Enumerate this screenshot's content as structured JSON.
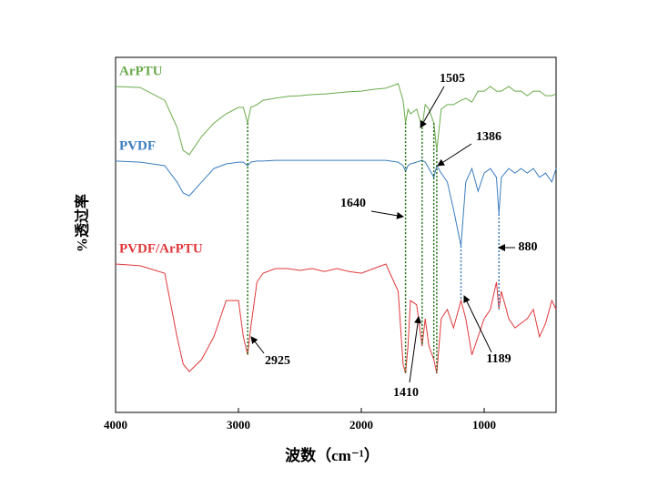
{
  "chart_data": {
    "type": "line",
    "xlabel": "波数（cm⁻¹）",
    "ylabel": "%透过率",
    "xlim": [
      4000,
      415
    ],
    "xticks": [
      4000,
      3000,
      2000,
      1000
    ],
    "ylim": [
      0,
      100
    ],
    "x": [
      4000,
      3800,
      3600,
      3500,
      3450,
      3400,
      3300,
      3200,
      3100,
      3000,
      2960,
      2925,
      2900,
      2850,
      2800,
      2700,
      2600,
      2500,
      2400,
      2300,
      2200,
      2100,
      2000,
      1900,
      1800,
      1700,
      1660,
      1640,
      1620,
      1600,
      1550,
      1505,
      1480,
      1450,
      1410,
      1386,
      1350,
      1300,
      1250,
      1189,
      1150,
      1100,
      1050,
      1000,
      950,
      900,
      880,
      860,
      800,
      750,
      700,
      650,
      600,
      550,
      500,
      450,
      415
    ],
    "series": [
      {
        "name": "ArPTU",
        "color": "#6aaa4a",
        "values": [
          91.8,
          91.5,
          87.9,
          80.3,
          73.8,
          72.6,
          77.7,
          81.5,
          84.1,
          85.9,
          85.9,
          81.5,
          85.9,
          86.7,
          87.9,
          88.5,
          89.0,
          89.2,
          89.5,
          89.7,
          90.0,
          90.3,
          90.5,
          91.0,
          91.3,
          92.6,
          87.9,
          81.5,
          85.4,
          84.1,
          85.4,
          80.3,
          86.7,
          85.4,
          81.5,
          73.8,
          85.4,
          86.7,
          86.7,
          87.9,
          88.5,
          87.4,
          90.5,
          90.5,
          91.8,
          90.5,
          90.5,
          90.5,
          91.8,
          90.5,
          90.5,
          89.2,
          90.5,
          90.5,
          89.2,
          89.2,
          89.7
        ]
      },
      {
        "name": "PVDF",
        "color": "#3a7dbf",
        "values": [
          70.8,
          70.5,
          69.5,
          64.9,
          61.8,
          61.0,
          64.9,
          68.7,
          70.0,
          70.5,
          70.5,
          69.5,
          70.5,
          70.8,
          70.8,
          71.0,
          71.0,
          71.0,
          71.0,
          71.0,
          71.0,
          71.0,
          71.0,
          71.0,
          71.0,
          70.5,
          69.5,
          67.9,
          69.5,
          70.0,
          70.5,
          71.0,
          70.5,
          68.7,
          66.2,
          69.5,
          67.4,
          64.9,
          57.2,
          46.9,
          64.9,
          68.7,
          62.3,
          67.4,
          68.7,
          66.2,
          55.9,
          66.2,
          68.7,
          67.4,
          68.7,
          67.4,
          68.7,
          66.2,
          67.4,
          64.9,
          68.7
        ]
      },
      {
        "name": "PVDF/ArPTU",
        "color": "#e0383a",
        "values": [
          41.8,
          41.3,
          39.2,
          21.3,
          13.6,
          11.5,
          14.9,
          21.3,
          31.5,
          31.5,
          21.3,
          16.2,
          23.8,
          36.7,
          39.2,
          40.5,
          40.5,
          40.0,
          40.5,
          39.7,
          40.5,
          39.7,
          39.2,
          40.5,
          41.8,
          34.1,
          13.6,
          11.0,
          18.7,
          31.5,
          30.3,
          18.7,
          26.4,
          18.7,
          14.9,
          11.0,
          26.4,
          29.0,
          23.8,
          31.5,
          26.4,
          16.2,
          21.3,
          26.4,
          29.0,
          36.7,
          29.0,
          34.1,
          26.4,
          23.8,
          25.1,
          26.4,
          29.0,
          21.3,
          25.1,
          31.5,
          29.0
        ]
      }
    ],
    "annotations": [
      {
        "x": 2925,
        "label": "2925",
        "color": "#1f6e14"
      },
      {
        "x": 1640,
        "label": "1640",
        "color": "#1f6e14"
      },
      {
        "x": 1505,
        "label": "1505",
        "color": "#1f6e14"
      },
      {
        "x": 1386,
        "label": "1386",
        "color": "#1f6e14"
      },
      {
        "x": 1410,
        "label": "1410",
        "color": "#1f6e14"
      },
      {
        "x": 1189,
        "label": "1189",
        "color": "#3a7dbf"
      },
      {
        "x": 880,
        "label": "880",
        "color": "#3a7dbf"
      }
    ]
  }
}
